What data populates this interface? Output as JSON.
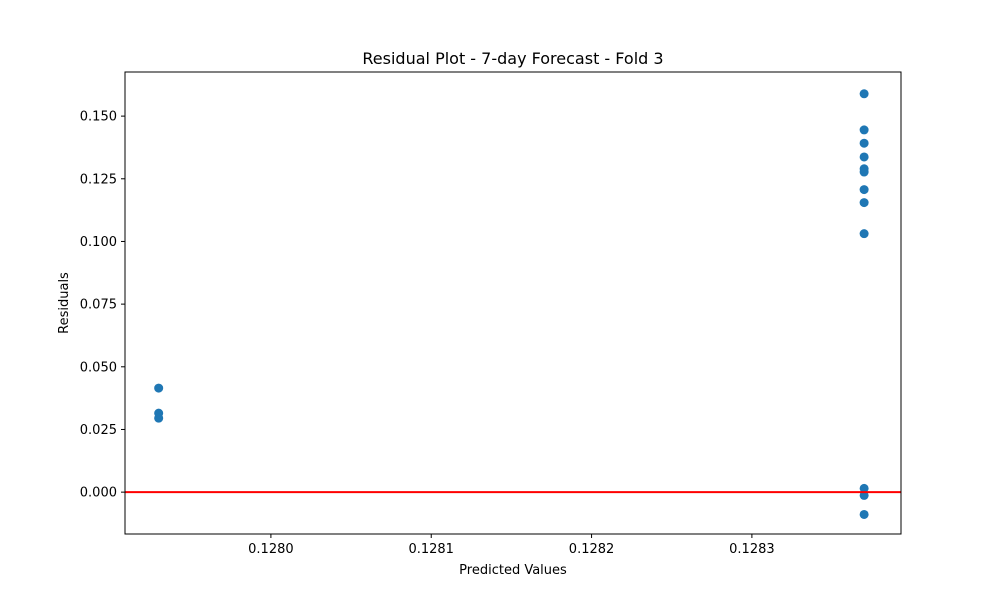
{
  "chart_data": {
    "type": "scatter",
    "title": "Residual Plot - 7-day Forecast - Fold 3",
    "xlabel": "Predicted Values",
    "ylabel": "Residuals",
    "xlim": [
      0.127909,
      0.128393
    ],
    "ylim": [
      -0.0167,
      0.1676
    ],
    "xticks": [
      0.128,
      0.1281,
      0.1282,
      0.1283
    ],
    "xtick_labels": [
      "0.1280",
      "0.1281",
      "0.1282",
      "0.1283"
    ],
    "yticks": [
      0.0,
      0.025,
      0.05,
      0.075,
      0.1,
      0.125,
      0.15
    ],
    "ytick_labels": [
      "0.000",
      "0.025",
      "0.050",
      "0.075",
      "0.100",
      "0.125",
      "0.150"
    ],
    "grid": false,
    "legend": "none",
    "reference_line": {
      "y": 0,
      "color": "#ff0000"
    },
    "point_color": "#1f77b4",
    "points": [
      {
        "x": 0.12793,
        "y": 0.0415
      },
      {
        "x": 0.12793,
        "y": 0.0315
      },
      {
        "x": 0.12793,
        "y": 0.0295
      },
      {
        "x": 0.12837,
        "y": 0.1589
      },
      {
        "x": 0.12837,
        "y": 0.1445
      },
      {
        "x": 0.12837,
        "y": 0.1392
      },
      {
        "x": 0.12837,
        "y": 0.1337
      },
      {
        "x": 0.12837,
        "y": 0.129
      },
      {
        "x": 0.12837,
        "y": 0.1277
      },
      {
        "x": 0.12837,
        "y": 0.1207
      },
      {
        "x": 0.12837,
        "y": 0.1155
      },
      {
        "x": 0.12837,
        "y": 0.1031
      },
      {
        "x": 0.12837,
        "y": 0.0015
      },
      {
        "x": 0.12837,
        "y": -0.0013
      },
      {
        "x": 0.12837,
        "y": -0.0089
      }
    ]
  }
}
